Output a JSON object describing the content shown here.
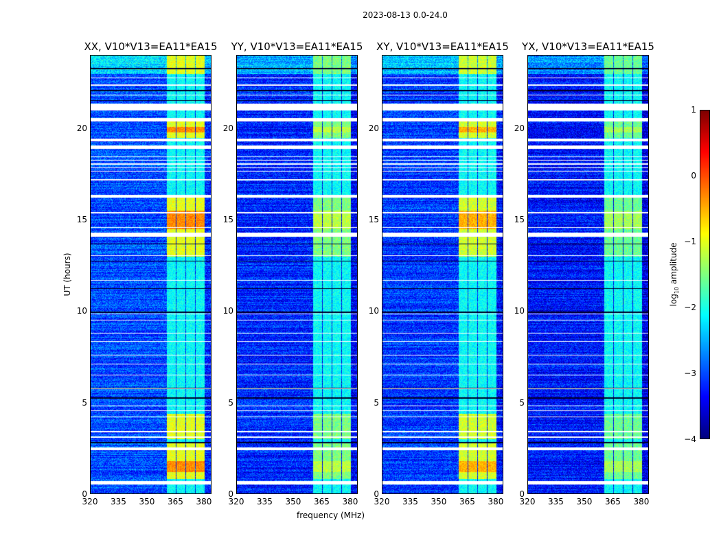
{
  "chart_data": {
    "type": "heatmap",
    "title": "2023-08-13 0.0-24.0",
    "xlabel": "frequency (MHz)",
    "ylabel": "UT (hours)",
    "xlim": [
      320,
      384
    ],
    "ylim": [
      0,
      24
    ],
    "xticks": [
      "320",
      "335",
      "350",
      "365",
      "380"
    ],
    "yticks": [
      "0",
      "5",
      "10",
      "15",
      "20"
    ],
    "colormap": "jet",
    "colorbar": {
      "label_prefix": "log",
      "label_sub": "10",
      "label_suffix": " amplitude",
      "vmin": -4,
      "vmax": 1,
      "ticks": [
        "1",
        "0",
        "−1",
        "−2",
        "−3",
        "−4"
      ]
    },
    "bright_band_mhz": [
      [
        360.4,
        365.1
      ],
      [
        365.5,
        370.2
      ],
      [
        370.6,
        375.3
      ],
      [
        375.6,
        380.5
      ]
    ],
    "active_periods_hours": [
      [
        0.8,
        2.8
      ],
      [
        3.0,
        4.4
      ],
      [
        13.0,
        16.3
      ],
      [
        19.5,
        20.5
      ],
      [
        23.0,
        24.0
      ]
    ],
    "flagged_rows_hours": [
      [
        0.5,
        0.7
      ],
      [
        2.4,
        2.55
      ],
      [
        3.08,
        3.14
      ],
      [
        3.38,
        3.44
      ],
      [
        4.18,
        4.24
      ],
      [
        4.53,
        4.58
      ],
      [
        4.78,
        4.83
      ],
      [
        5.72,
        5.78
      ],
      [
        6.48,
        6.54
      ],
      [
        7.08,
        7.13
      ],
      [
        7.58,
        7.63
      ],
      [
        8.33,
        8.38
      ],
      [
        8.78,
        8.83
      ],
      [
        9.48,
        9.53
      ],
      [
        9.83,
        9.88
      ],
      [
        11.68,
        11.73
      ],
      [
        13.03,
        13.08
      ],
      [
        14.1,
        14.3
      ],
      [
        14.58,
        14.63
      ],
      [
        15.38,
        15.43
      ],
      [
        16.25,
        16.4
      ],
      [
        17.18,
        17.23
      ],
      [
        17.65,
        17.7
      ],
      [
        17.85,
        17.9
      ],
      [
        18.05,
        18.1
      ],
      [
        18.25,
        18.3
      ],
      [
        18.45,
        18.5
      ],
      [
        18.9,
        19.1
      ],
      [
        19.3,
        19.45
      ],
      [
        20.4,
        20.6
      ],
      [
        21.0,
        21.4
      ],
      [
        21.83,
        21.88
      ],
      [
        22.38,
        22.43
      ],
      [
        22.78,
        22.83
      ]
    ],
    "dark_rows_hours": [
      2.8,
      5.25,
      5.8,
      9.95,
      11.25,
      12.75,
      13.7,
      21.55,
      22.1,
      23.3
    ],
    "panels": [
      {
        "title": "XX, V10*V13=EA11*EA15",
        "band_level": -1.0,
        "peak_level": -0.3,
        "base_level": -3.0
      },
      {
        "title": "YY, V10*V13=EA11*EA15",
        "band_level": -1.5,
        "peak_level": -1.2,
        "base_level": -3.2
      },
      {
        "title": "XY, V10*V13=EA11*EA15",
        "band_level": -1.1,
        "peak_level": -0.5,
        "base_level": -3.1
      },
      {
        "title": "YX, V10*V13=EA11*EA15",
        "band_level": -1.6,
        "peak_level": -1.3,
        "base_level": -3.3
      }
    ]
  }
}
